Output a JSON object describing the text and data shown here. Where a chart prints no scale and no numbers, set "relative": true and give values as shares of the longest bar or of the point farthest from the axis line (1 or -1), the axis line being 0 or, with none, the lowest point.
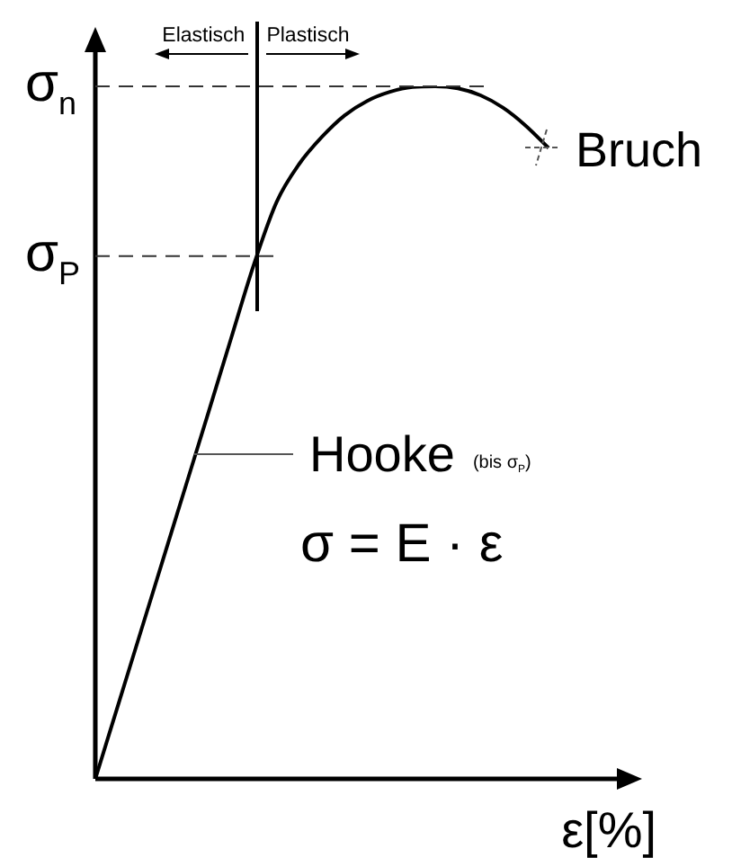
{
  "chart_data": {
    "type": "line",
    "relative": true,
    "xlabel": "ε[%]",
    "categories": [
      null,
      null,
      null,
      null,
      null,
      null,
      null,
      null,
      null,
      null,
      null,
      null,
      null,
      null,
      null,
      null,
      null,
      null,
      null,
      null,
      null
    ],
    "series": [
      {
        "color": "#000000",
        "values": [
          0,
          0.106,
          0.212,
          0.318,
          0.424,
          0.53,
          0.637,
          0.743,
          0.833,
          0.888,
          0.927,
          0.958,
          0.979,
          0.992,
          0.999,
          1,
          0.997,
          0.987,
          0.969,
          0.943,
          0.911
        ]
      }
    ],
    "ref_lines": [
      {
        "axis": "y",
        "value": 1,
        "label": "σ$_{n}$",
        "line_style": "dashed"
      },
      {
        "axis": "y",
        "value": 0.755,
        "label": "σ$_{P}$",
        "line_style": "dashed"
      }
    ],
    "annotations": [
      "Elastisch",
      "Plastisch",
      "Bruch",
      "Hooke (bis σ$_{P}$)",
      "σ = E · ε"
    ],
    "marker": "none",
    "line_style": "solid"
  }
}
